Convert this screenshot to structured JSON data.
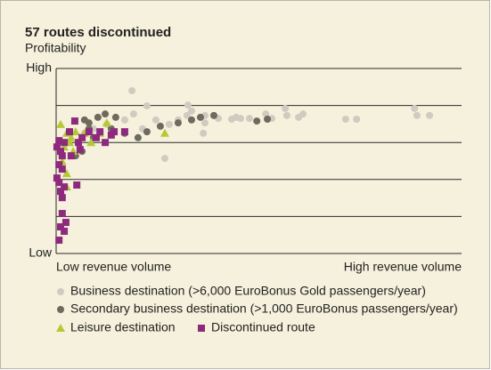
{
  "chart_data": {
    "type": "scatter",
    "title": "57 routes discontinued",
    "y_label": "Profitability",
    "xlim": [
      0,
      100
    ],
    "ylim": [
      0,
      5
    ],
    "xticks": [
      {
        "value": 0,
        "label": "Low revenue volume"
      },
      {
        "value": 100,
        "label": "High revenue volume"
      }
    ],
    "yticks": [
      {
        "value": 0,
        "label": "Low"
      },
      {
        "value": 1,
        "label": null
      },
      {
        "value": 2,
        "label": null
      },
      {
        "value": 3,
        "label": null
      },
      {
        "value": 4,
        "label": null
      },
      {
        "value": 5,
        "label": "High"
      }
    ],
    "grid": true,
    "series": [
      {
        "name": "Business destination (>6,000 EuroBonus Gold passengers/year)",
        "marker": "circle",
        "color": "#cfcbc0",
        "x": [
          18.7,
          22.4,
          32.5,
          33.4,
          36.7,
          40.0,
          43.3,
          45.5,
          47.7,
          51.7,
          56.5,
          56.9,
          60.9,
          71.4,
          74.1,
          88.4,
          89.0,
          92.1,
          26.8,
          36.3,
          27.9,
          24.6,
          19.1,
          21.3,
          30.1,
          16.9,
          12.5,
          9.2,
          7.0,
          36.7,
          44.4,
          53.2,
          59.8,
          32.3
        ],
        "values": [
          4.4,
          3.99,
          4.01,
          3.85,
          3.73,
          3.65,
          3.63,
          3.65,
          3.65,
          3.77,
          3.92,
          3.73,
          3.77,
          3.63,
          3.63,
          3.92,
          3.73,
          3.73,
          2.57,
          3.25,
          3.49,
          3.61,
          3.77,
          3.37,
          3.61,
          3.61,
          3.49,
          3.37,
          3.25,
          3.53,
          3.68,
          3.65,
          3.68,
          3.73
        ]
      },
      {
        "name": "Secondary business destination (>1,000 EuroBonus passengers/year)",
        "marker": "circle",
        "color": "#6e6a5e",
        "x": [
          7.0,
          10.3,
          12.1,
          14.7,
          16.9,
          20.2,
          22.4,
          25.7,
          30.1,
          33.4,
          35.6,
          38.9,
          49.5,
          52.1,
          8.1,
          5.5,
          6.4,
          4.8,
          9.2,
          13.6,
          8.1
        ],
        "values": [
          3.61,
          3.68,
          3.77,
          3.68,
          3.25,
          3.13,
          3.29,
          3.44,
          3.53,
          3.61,
          3.68,
          3.73,
          3.58,
          3.63,
          3.37,
          3.0,
          2.76,
          2.64,
          3.13,
          3.37,
          3.53
        ]
      },
      {
        "name": "Leisure destination",
        "marker": "triangle",
        "color": "#b5c934",
        "x": [
          1.1,
          2.6,
          3.3,
          2.0,
          3.7,
          4.8,
          7.0,
          8.6,
          1.5,
          2.6,
          26.8,
          10.8,
          4.2,
          12.5,
          2.6
        ],
        "values": [
          3.49,
          3.25,
          3.0,
          2.88,
          3.13,
          3.29,
          3.25,
          3.0,
          2.48,
          1.8,
          3.25,
          3.25,
          2.76,
          3.53,
          2.16
        ]
      },
      {
        "name": "Discontinued route",
        "marker": "square",
        "color": "#8e2a7d",
        "x": [
          4.6,
          3.3,
          0.7,
          0.2,
          1.1,
          1.5,
          2.0,
          0.7,
          1.5,
          0.2,
          0.7,
          1.1,
          1.5,
          2.0,
          5.1,
          1.5,
          2.4,
          1.1,
          0.7,
          2.0,
          5.5,
          6.4,
          8.1,
          9.9,
          12.1,
          14.3,
          16.9,
          13.6,
          10.8,
          3.7,
          5.9
        ],
        "values": [
          3.58,
          3.29,
          3.05,
          2.88,
          2.76,
          2.64,
          3.0,
          2.4,
          2.28,
          2.04,
          1.92,
          1.68,
          1.51,
          1.8,
          1.85,
          1.08,
          0.84,
          0.72,
          0.36,
          0.6,
          3.0,
          3.13,
          3.29,
          3.13,
          3.0,
          3.29,
          3.29,
          3.2,
          3.29,
          2.64,
          2.81
        ]
      }
    ]
  }
}
